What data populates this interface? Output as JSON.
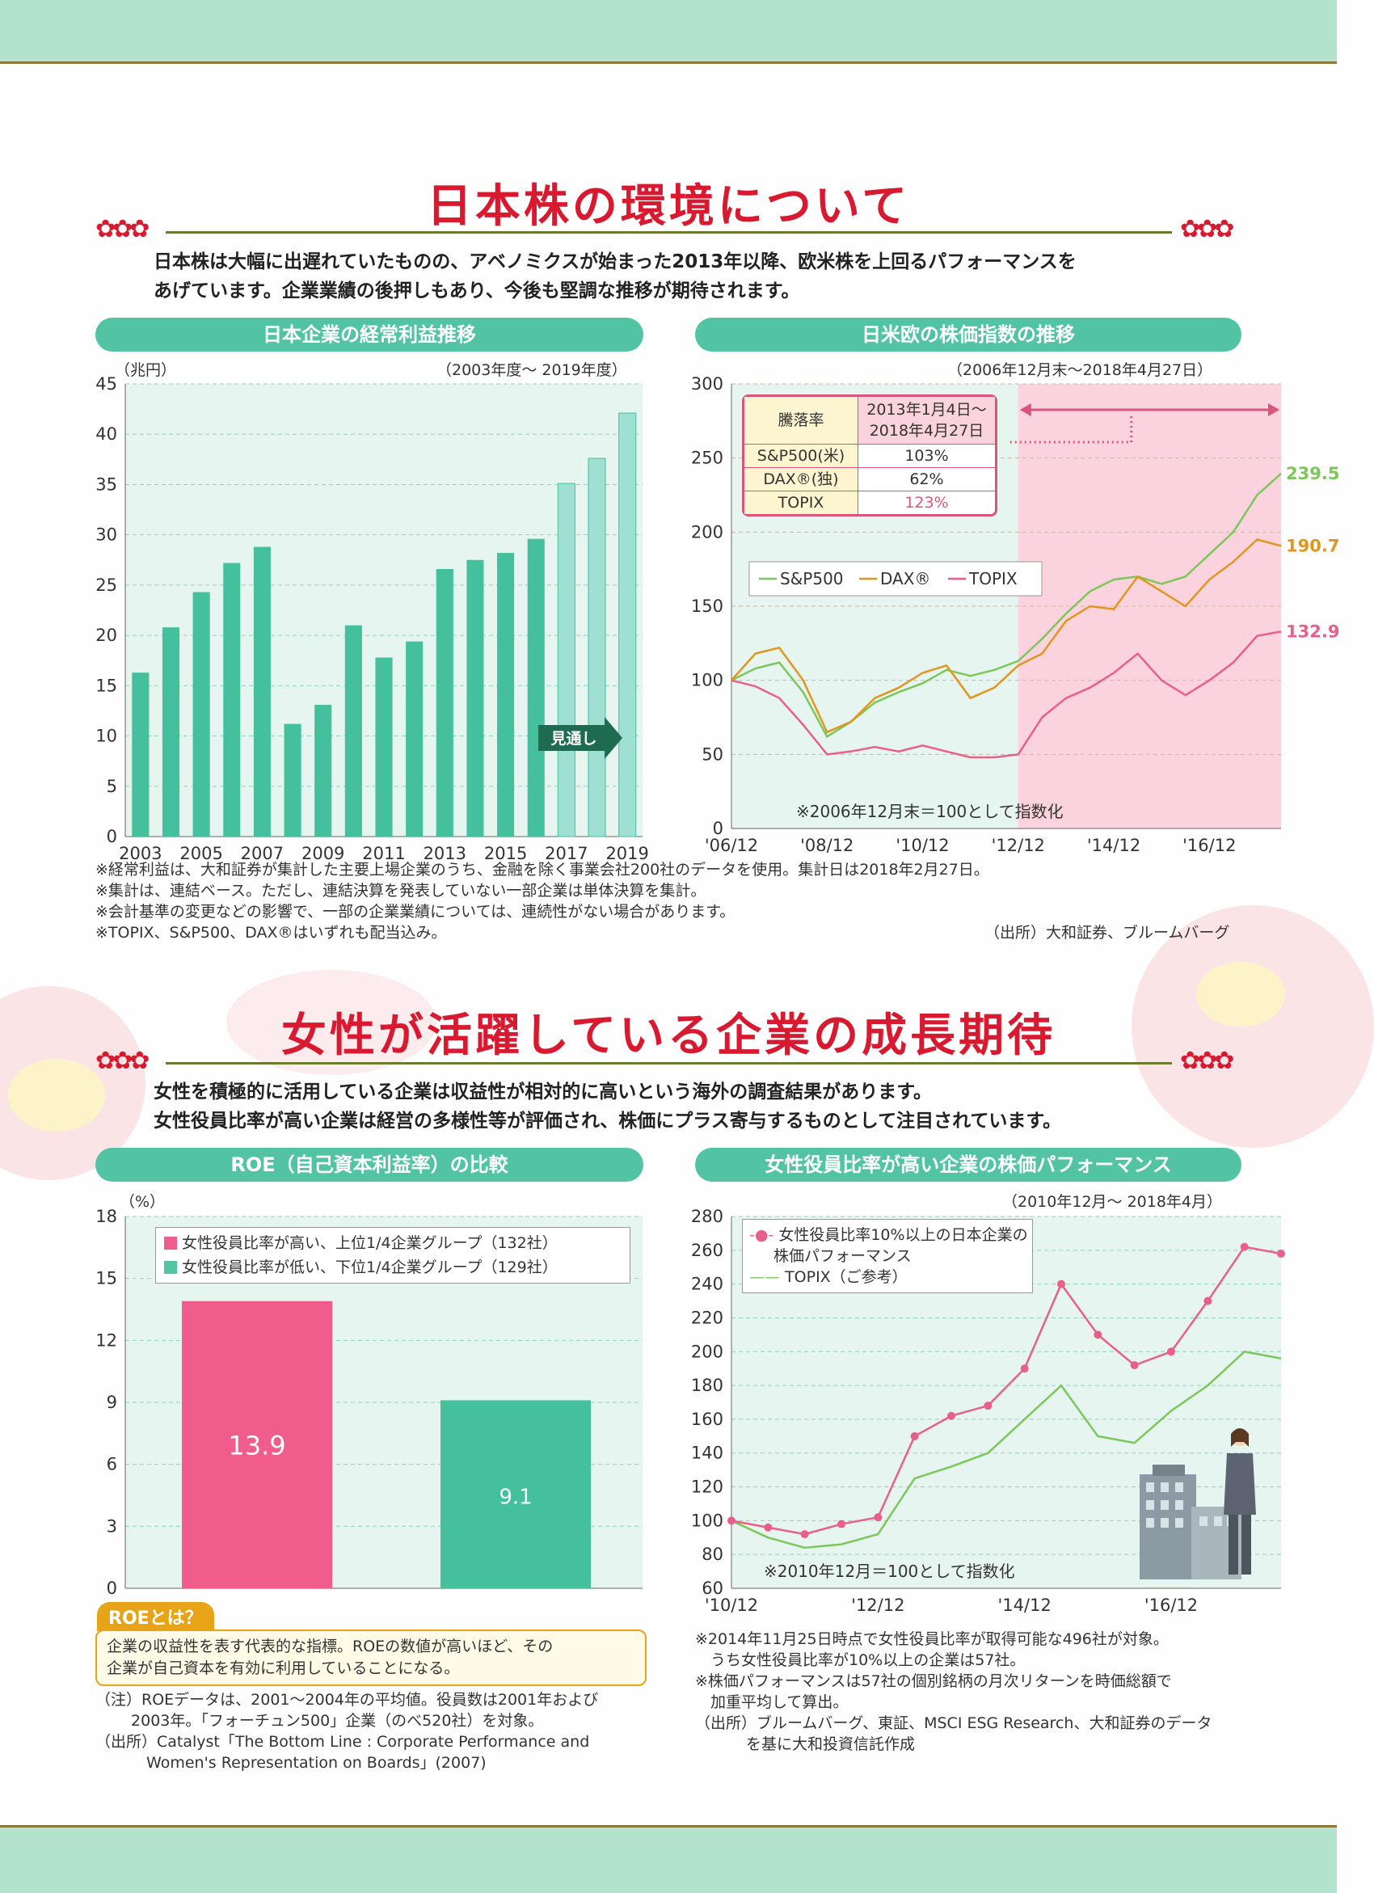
{
  "section1": {
    "title": "日本株の環境について",
    "intro_line1": "日本株は大幅に出遅れていたものの、アベノミクスが始まった2013年以降、欧米株を上回るパフォーマンスを",
    "intro_line2": "あげています。企業業績の後押しもあり、今後も堅調な推移が期待されます。"
  },
  "section2": {
    "title": "女性が活躍している企業の成長期待",
    "intro_line1": "女性を積極的に活用している企業は収益性が相対的に高いという海外の調査結果があります。",
    "intro_line2": "女性役員比率が高い企業は経営の多様性等が評価され、株価にプラス寄与するものとして注目されています。"
  },
  "chart1_header": {
    "title": "日本企業の経常利益推移",
    "unit": "（兆円）",
    "period": "（2003年度〜 2019年度）",
    "forecast": "見通し"
  },
  "chart2_header": {
    "title": "日米欧の株価指数の推移",
    "period": "（2006年12月末〜2018年4月27日）",
    "note": "※2006年12月末＝100として指数化",
    "table_h1": "騰落率",
    "table_h2a": "2013年1月4日〜",
    "table_h2b": "2018年4月27日",
    "rows": [
      {
        "name": "S&P500(米)",
        "value": "103%"
      },
      {
        "name": "DAX®(独)",
        "value": "62%"
      },
      {
        "name": "TOPIX",
        "value": "123%"
      }
    ],
    "legend": [
      "S&P500",
      "DAX®",
      "TOPIX"
    ],
    "end_labels": [
      "239.5",
      "190.7",
      "132.9"
    ]
  },
  "chart3_header": {
    "title": "ROE（自己資本利益率）の比較",
    "unit": "（%）",
    "legend1": "女性役員比率が高い、上位1/4企業グループ（132社）",
    "legend2": "女性役員比率が低い、下位1/4企業グループ（129社）"
  },
  "chart4_header": {
    "title": "女性役員比率が高い企業の株価パフォーマンス",
    "period": "（2010年12月〜 2018年4月）",
    "legend1a": "女性役員比率10%以上の日本企業の",
    "legend1b": "株価パフォーマンス",
    "legend2": "TOPIX（ご参考）",
    "note": "※2010年12月＝100として指数化"
  },
  "chart_data": [
    {
      "type": "bar",
      "title": "日本企業の経常利益推移",
      "ylabel": "兆円",
      "ylim": [
        0,
        45
      ],
      "categories": [
        "2003",
        "2004",
        "2005",
        "2006",
        "2007",
        "2008",
        "2009",
        "2010",
        "2011",
        "2012",
        "2013",
        "2014",
        "2015",
        "2016",
        "2017",
        "2018",
        "2019"
      ],
      "values": [
        16.3,
        20.8,
        24.3,
        27.2,
        28.8,
        11.2,
        13.1,
        21.0,
        17.8,
        19.4,
        26.6,
        27.5,
        28.2,
        29.6,
        35.1,
        37.6,
        42.1
      ],
      "forecast_from": "2017",
      "xticklabels": [
        "2003",
        "2005",
        "2007",
        "2009",
        "2011",
        "2013",
        "2015",
        "2017",
        "2019"
      ],
      "yticks": [
        0,
        5,
        10,
        15,
        20,
        25,
        30,
        35,
        40,
        45
      ]
    },
    {
      "type": "line",
      "title": "日米欧の株価指数の推移",
      "ylim": [
        0,
        300
      ],
      "x": [
        "'06/12",
        "'07/06",
        "'07/12",
        "'08/06",
        "'08/12",
        "'09/06",
        "'09/12",
        "'10/06",
        "'10/12",
        "'11/06",
        "'11/12",
        "'12/06",
        "'12/12",
        "'13/06",
        "'13/12",
        "'14/06",
        "'14/12",
        "'15/06",
        "'15/12",
        "'16/06",
        "'16/12",
        "'17/06",
        "'17/12",
        "'18/04"
      ],
      "xticklabels": [
        "'06/12",
        "'08/12",
        "'10/12",
        "'12/12",
        "'14/12",
        "'16/12"
      ],
      "yticks": [
        0,
        50,
        100,
        150,
        200,
        250,
        300
      ],
      "series": [
        {
          "name": "S&P500",
          "color": "#7cc75a",
          "values": [
            100,
            108,
            112,
            92,
            62,
            72,
            85,
            92,
            98,
            107,
            103,
            107,
            113,
            128,
            145,
            160,
            168,
            170,
            165,
            170,
            185,
            200,
            225,
            239.5
          ]
        },
        {
          "name": "DAX®",
          "color": "#e3961f",
          "values": [
            100,
            118,
            122,
            100,
            65,
            72,
            88,
            95,
            105,
            110,
            88,
            95,
            110,
            118,
            140,
            150,
            148,
            170,
            160,
            150,
            168,
            180,
            195,
            190.7
          ]
        },
        {
          "name": "TOPIX",
          "color": "#e8608a",
          "values": [
            100,
            96,
            88,
            70,
            50,
            52,
            55,
            52,
            56,
            52,
            48,
            48,
            50,
            75,
            88,
            95,
            105,
            118,
            100,
            90,
            100,
            112,
            130,
            132.9
          ]
        }
      ]
    },
    {
      "type": "bar",
      "title": "ROE（自己資本利益率）の比較",
      "ylabel": "%",
      "ylim": [
        0,
        18
      ],
      "categories": [
        "女性役員比率が高い、上位1/4企業グループ（132社）",
        "女性役員比率が低い、下位1/4企業グループ（129社）"
      ],
      "values": [
        13.9,
        9.1
      ],
      "labels": [
        "13.9",
        "9.1"
      ],
      "yticks": [
        0,
        3,
        6,
        9,
        12,
        15,
        18
      ]
    },
    {
      "type": "line",
      "title": "女性役員比率が高い企業の株価パフォーマンス",
      "ylim": [
        60,
        280
      ],
      "x": [
        "'10/12",
        "'11/06",
        "'11/12",
        "'12/06",
        "'12/12",
        "'13/06",
        "'13/12",
        "'14/06",
        "'14/12",
        "'15/06",
        "'15/12",
        "'16/06",
        "'16/12",
        "'17/06",
        "'17/12",
        "'18/04"
      ],
      "xticklabels": [
        "'10/12",
        "'12/12",
        "'14/12",
        "'16/12"
      ],
      "yticks": [
        60,
        80,
        100,
        120,
        140,
        160,
        180,
        200,
        220,
        240,
        260,
        280
      ],
      "series": [
        {
          "name": "女性役員比率10%以上の日本企業の株価パフォーマンス",
          "color": "#e8608a",
          "values": [
            100,
            96,
            92,
            98,
            102,
            150,
            162,
            168,
            190,
            240,
            210,
            192,
            200,
            230,
            262,
            258
          ]
        },
        {
          "name": "TOPIX（ご参考）",
          "color": "#7cc75a",
          "values": [
            100,
            90,
            84,
            86,
            92,
            125,
            132,
            140,
            160,
            180,
            150,
            146,
            165,
            180,
            200,
            196
          ]
        }
      ]
    }
  ],
  "notes1": [
    "※経常利益は、大和証券が集計した主要上場企業のうち、金融を除く事業会社200社のデータを使用。集計日は2018年2月27日。",
    "※集計は、連結ベース。ただし、連結決算を発表していない一部企業は単体決算を集計。",
    "※会計基準の変更などの影響で、一部の企業業績については、連続性がない場合があります。",
    "※TOPIX、S&P500、DAX®はいずれも配当込み。"
  ],
  "source1": "（出所）大和証券、ブルームバーグ",
  "roe_box": {
    "tag": "ROEとは？",
    "line1": "企業の収益性を表す代表的な指標。ROEの数値が高いほど、その",
    "line2": "企業が自己資本を有効に利用していることになる。"
  },
  "notes3": [
    "（注）ROEデータは、2001〜2004年の平均値。役員数は2001年および",
    "　　 2003年。「フォーチュン500」企業（のべ520社）を対象。",
    "（出所）Catalyst「The Bottom Line : Corporate Performance and",
    "　　　 Women's Representation on Boards」(2007)"
  ],
  "notes4": [
    "※2014年11月25日時点で女性役員比率が取得可能な496社が対象。",
    "　うち女性役員比率が10%以上の企業は57社。",
    "※株価パフォーマンスは57社の個別銘柄の月次リターンを時価総額で",
    "　加重平均して算出。",
    "（出所）ブルームバーグ、東証、MSCI ESG Research、大和証券のデータ",
    "　　　 を基に大和投資信託作成"
  ],
  "colors": {
    "accent_red": "#d8192f",
    "teal": "#53c4a3",
    "pink": "#f05d8c",
    "panel_bg": "#e6f5ef"
  }
}
